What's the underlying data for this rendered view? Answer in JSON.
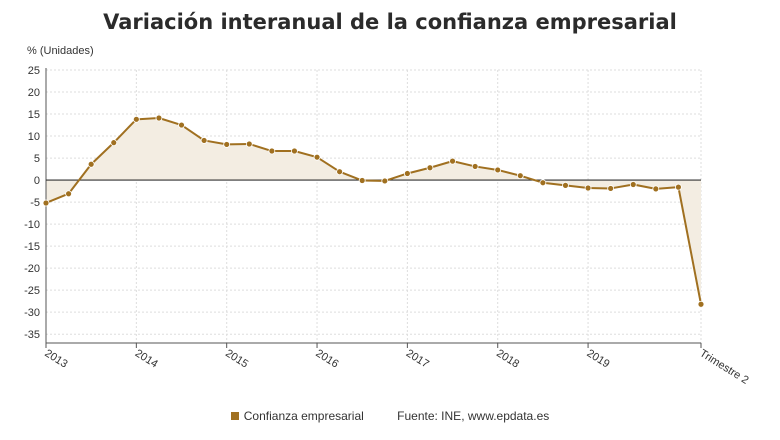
{
  "title": "Variación interanual de la confianza empresarial",
  "legend_label": "Confianza empresarial",
  "source": "Fuente: INE, www.epdata.es",
  "colors": {
    "series": "#a07020",
    "fill": "#f3ede2",
    "grid": "#dddddd",
    "zero": "#333333"
  },
  "chart_data": {
    "type": "line",
    "ylabel": "% (Unidades)",
    "xlabel": "",
    "ylim": [
      -37,
      25
    ],
    "yticks": [
      25,
      20,
      15,
      10,
      5,
      0,
      -5,
      -10,
      -15,
      -20,
      -25,
      -30,
      -35
    ],
    "x_tick_labels": [
      "2013",
      "2014",
      "2015",
      "2016",
      "2017",
      "2018",
      "2019",
      "Trimestre 2"
    ],
    "x_tick_index": [
      0,
      4,
      8,
      12,
      16,
      20,
      24,
      29
    ],
    "series": [
      {
        "name": "Confianza empresarial",
        "values": [
          -5.2,
          -3.1,
          3.6,
          8.5,
          13.8,
          14.1,
          12.5,
          9.0,
          8.1,
          8.2,
          6.6,
          6.6,
          5.2,
          1.9,
          -0.1,
          -0.2,
          1.5,
          2.8,
          4.3,
          3.1,
          2.3,
          1.0,
          -0.6,
          -1.2,
          -1.8,
          -1.9,
          -1.0,
          -2.0,
          -1.6,
          -28.2
        ]
      }
    ]
  }
}
